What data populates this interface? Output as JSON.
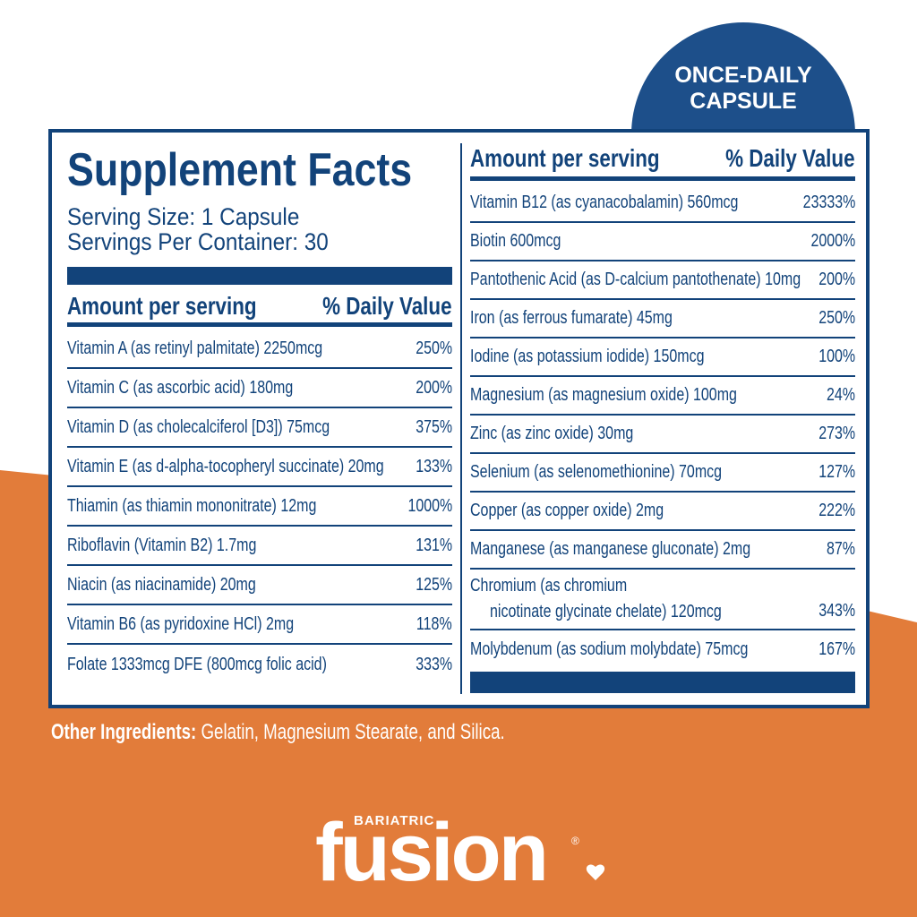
{
  "badge": {
    "lines": [
      "ONCE-DAILY",
      "CAPSULE"
    ]
  },
  "facts": {
    "title": "Supplement Facts",
    "serving_size": "Serving Size: 1 Capsule",
    "servings_per_container": "Servings Per Container: 30",
    "header": {
      "amount": "Amount per serving",
      "dv": "% Daily Value"
    },
    "left_rows": [
      {
        "name": [
          "Vitamin A (as retinyl palmitate) 2250mcg"
        ],
        "dv": "250%"
      },
      {
        "name": [
          "Vitamin C (as ascorbic acid) 180mg"
        ],
        "dv": "200%"
      },
      {
        "name": [
          "Vitamin D (as cholecalciferol [D3]) 75mcg"
        ],
        "dv": "375%"
      },
      {
        "name": [
          "Vitamin E (as d-alpha-tocopheryl succinate) 20mg"
        ],
        "dv": "133%"
      },
      {
        "name": [
          "Thiamin (as thiamin mononitrate) 12mg"
        ],
        "dv": "1000%"
      },
      {
        "name": [
          "Riboflavin (Vitamin B2) 1.7mg"
        ],
        "dv": "131%"
      },
      {
        "name": [
          "Niacin (as niacinamide) 20mg"
        ],
        "dv": "125%"
      },
      {
        "name": [
          "Vitamin B6 (as pyridoxine HCl) 2mg"
        ],
        "dv": "118%"
      },
      {
        "name": [
          "Folate 1333mcg DFE (800mcg folic acid)"
        ],
        "dv": "333%"
      }
    ],
    "right_rows": [
      {
        "name": [
          "Vitamin B12 (as cyanacobalamin) 560mcg"
        ],
        "dv": "23333%"
      },
      {
        "name": [
          "Biotin 600mcg"
        ],
        "dv": "2000%"
      },
      {
        "name": [
          "Pantothenic Acid (as D-calcium pantothenate) 10mg"
        ],
        "dv": "200%"
      },
      {
        "name": [
          "Iron (as ferrous fumarate) 45mg"
        ],
        "dv": "250%"
      },
      {
        "name": [
          "Iodine (as potassium iodide) 150mcg"
        ],
        "dv": "100%"
      },
      {
        "name": [
          "Magnesium (as magnesium oxide) 100mg"
        ],
        "dv": "24%"
      },
      {
        "name": [
          "Zinc (as zinc oxide) 30mg"
        ],
        "dv": "273%"
      },
      {
        "name": [
          "Selenium (as selenomethionine) 70mcg"
        ],
        "dv": "127%"
      },
      {
        "name": [
          "Copper (as copper oxide) 2mg"
        ],
        "dv": "222%"
      },
      {
        "name": [
          "Manganese (as manganese gluconate) 2mg"
        ],
        "dv": "87%"
      },
      {
        "name": [
          "Chromium (as chromium",
          "nicotinate glycinate chelate) 120mcg"
        ],
        "dv": "343%"
      },
      {
        "name": [
          "Molybdenum (as sodium molybdate) 75mcg"
        ],
        "dv": "167%"
      }
    ]
  },
  "other_ingredients": {
    "label": "Other Ingredients:",
    "text": "Gelatin, Magnesium Stearate, and Silica."
  },
  "brand": {
    "small": "BARIATRIC",
    "name": "fusion",
    "mark": "®"
  }
}
